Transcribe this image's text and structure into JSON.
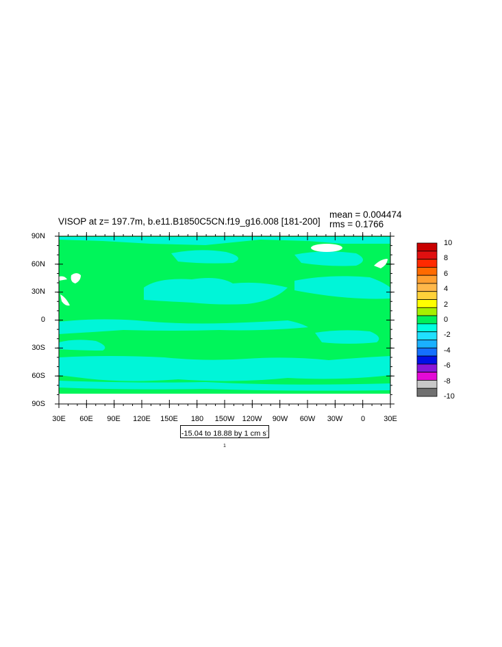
{
  "title": "VISOP at z= 197.7m, b.e11.B1850C5CN.f19_g16.008 [181-200]",
  "stats": {
    "mean": "mean = 0.004474",
    "rms": "rms = 0.1766"
  },
  "lat_labels": [
    "90N",
    "60N",
    "30N",
    "0",
    "30S",
    "60S",
    "90S"
  ],
  "lon_labels": [
    "30E",
    "60E",
    "90E",
    "120E",
    "150E",
    "180",
    "150W",
    "120W",
    "90W",
    "60W",
    "30W",
    "0",
    "30E"
  ],
  "range_text": "-15.04 to 18.88 by 1 cm s",
  "range_exp": "-1",
  "colorbar": {
    "labels": [
      "10",
      "8",
      "6",
      "4",
      "2",
      "0",
      "-2",
      "-4",
      "-6",
      "-8",
      "-10"
    ],
    "colors": [
      "#c80000",
      "#e01010",
      "#ff2a00",
      "#ff6a00",
      "#ff9f30",
      "#ffb84a",
      "#ffd23a",
      "#ffff00",
      "#a5f000",
      "#00f05a",
      "#00ffe0",
      "#20e0ff",
      "#1ab0ff",
      "#1470ff",
      "#0010e6",
      "#8a16d8",
      "#e40ad6",
      "#c8c8c8",
      "#707070"
    ]
  },
  "map_colors": {
    "main": "#00f55a",
    "secondary": "#00f5d8",
    "land_void": "#ffffff"
  }
}
